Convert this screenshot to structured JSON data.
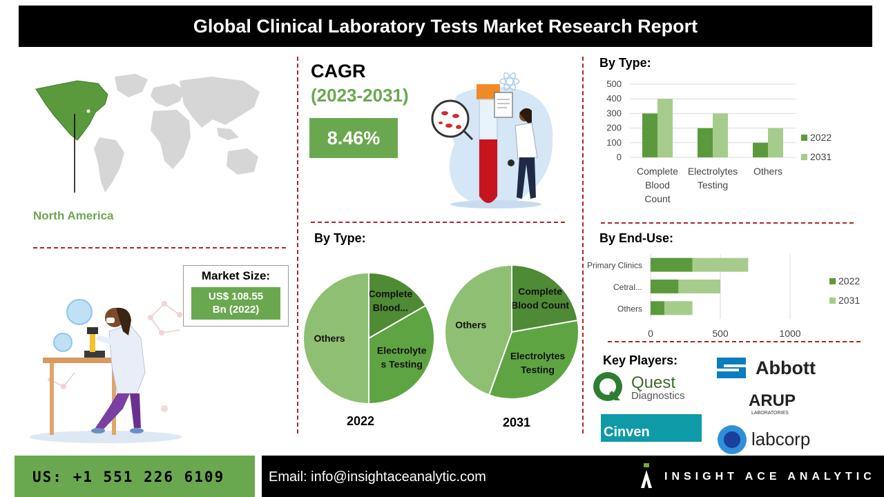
{
  "header": {
    "title": "Global Clinical Laboratory Tests Market Research Report"
  },
  "region": {
    "label": "North America"
  },
  "market_size": {
    "label": "Market Size:",
    "value_line1": "US$ 108.55",
    "value_line2": "Bn (2022)"
  },
  "cagr": {
    "title": "CAGR",
    "years": "(2023-2031)",
    "value": "8.46%"
  },
  "sections": {
    "by_type_top": "By Type:",
    "by_type_pies": "By Type:",
    "by_end_use": "By End-Use:",
    "key_players": "Key Players:"
  },
  "colors": {
    "dark_green": "#5b9a3c",
    "light_green": "#a6cc8c",
    "accent_green": "#6aa84f",
    "divider_red": "#b22222"
  },
  "chart_data": [
    {
      "type": "bar",
      "title": "",
      "categories": [
        "Complete Blood Count",
        "Electrolytes Testing",
        "Others"
      ],
      "category_label_lines": [
        [
          "Complete",
          "Blood",
          "Count"
        ],
        [
          "Electrolytes",
          "Testing"
        ],
        [
          "Others"
        ]
      ],
      "series": [
        {
          "name": "2022",
          "values": [
            300,
            200,
            100
          ]
        },
        {
          "name": "2031",
          "values": [
            400,
            300,
            200
          ]
        }
      ],
      "ylim": [
        0,
        500
      ],
      "yticks": [
        0,
        100,
        200,
        300,
        400,
        500
      ],
      "grid": true,
      "legend": "right"
    },
    {
      "type": "pie",
      "label": "2022",
      "slices": [
        {
          "name": "Complete Blood...",
          "label_lines": [
            "Complete",
            "Blood..."
          ],
          "value": 16.7
        },
        {
          "name": "Electrolytes Testing",
          "label_lines": [
            "Electrolyte",
            "s Testing"
          ],
          "value": 33.3
        },
        {
          "name": "Others",
          "label_lines": [
            "Others"
          ],
          "value": 50
        }
      ]
    },
    {
      "type": "pie",
      "label": "2031",
      "slices": [
        {
          "name": "Complete Blood Count",
          "label_lines": [
            "Complete",
            "Blood Count"
          ],
          "value": 22.2
        },
        {
          "name": "Electrolytes Testing",
          "label_lines": [
            "Electrolytes",
            "Testing"
          ],
          "value": 33.3
        },
        {
          "name": "Others",
          "label_lines": [
            "Others"
          ],
          "value": 44.5
        }
      ]
    },
    {
      "type": "bar",
      "orientation": "horizontal",
      "stacked": true,
      "categories": [
        "Primary Clinics",
        "Cetral...",
        "Others"
      ],
      "series": [
        {
          "name": "2022",
          "values": [
            300,
            200,
            100
          ]
        },
        {
          "name": "2031",
          "values": [
            400,
            300,
            200
          ]
        }
      ],
      "xlim": [
        0,
        1000
      ],
      "xticks": [
        0,
        500,
        1000
      ],
      "grid": true,
      "legend": "right"
    }
  ],
  "key_players": {
    "quest_line1": "Quest",
    "quest_line2": "Diagnostics",
    "abbott": "Abbott",
    "arup": "ARUP",
    "arup_sub": "LABORATORIES",
    "cinven": "Cinven",
    "labcorp": "labcorp"
  },
  "footer": {
    "phone": "US: +1 551 226 6109",
    "email": "Email: info@insightaceanalytic.com",
    "brand": "INSIGHT ACE ANALYTIC"
  }
}
